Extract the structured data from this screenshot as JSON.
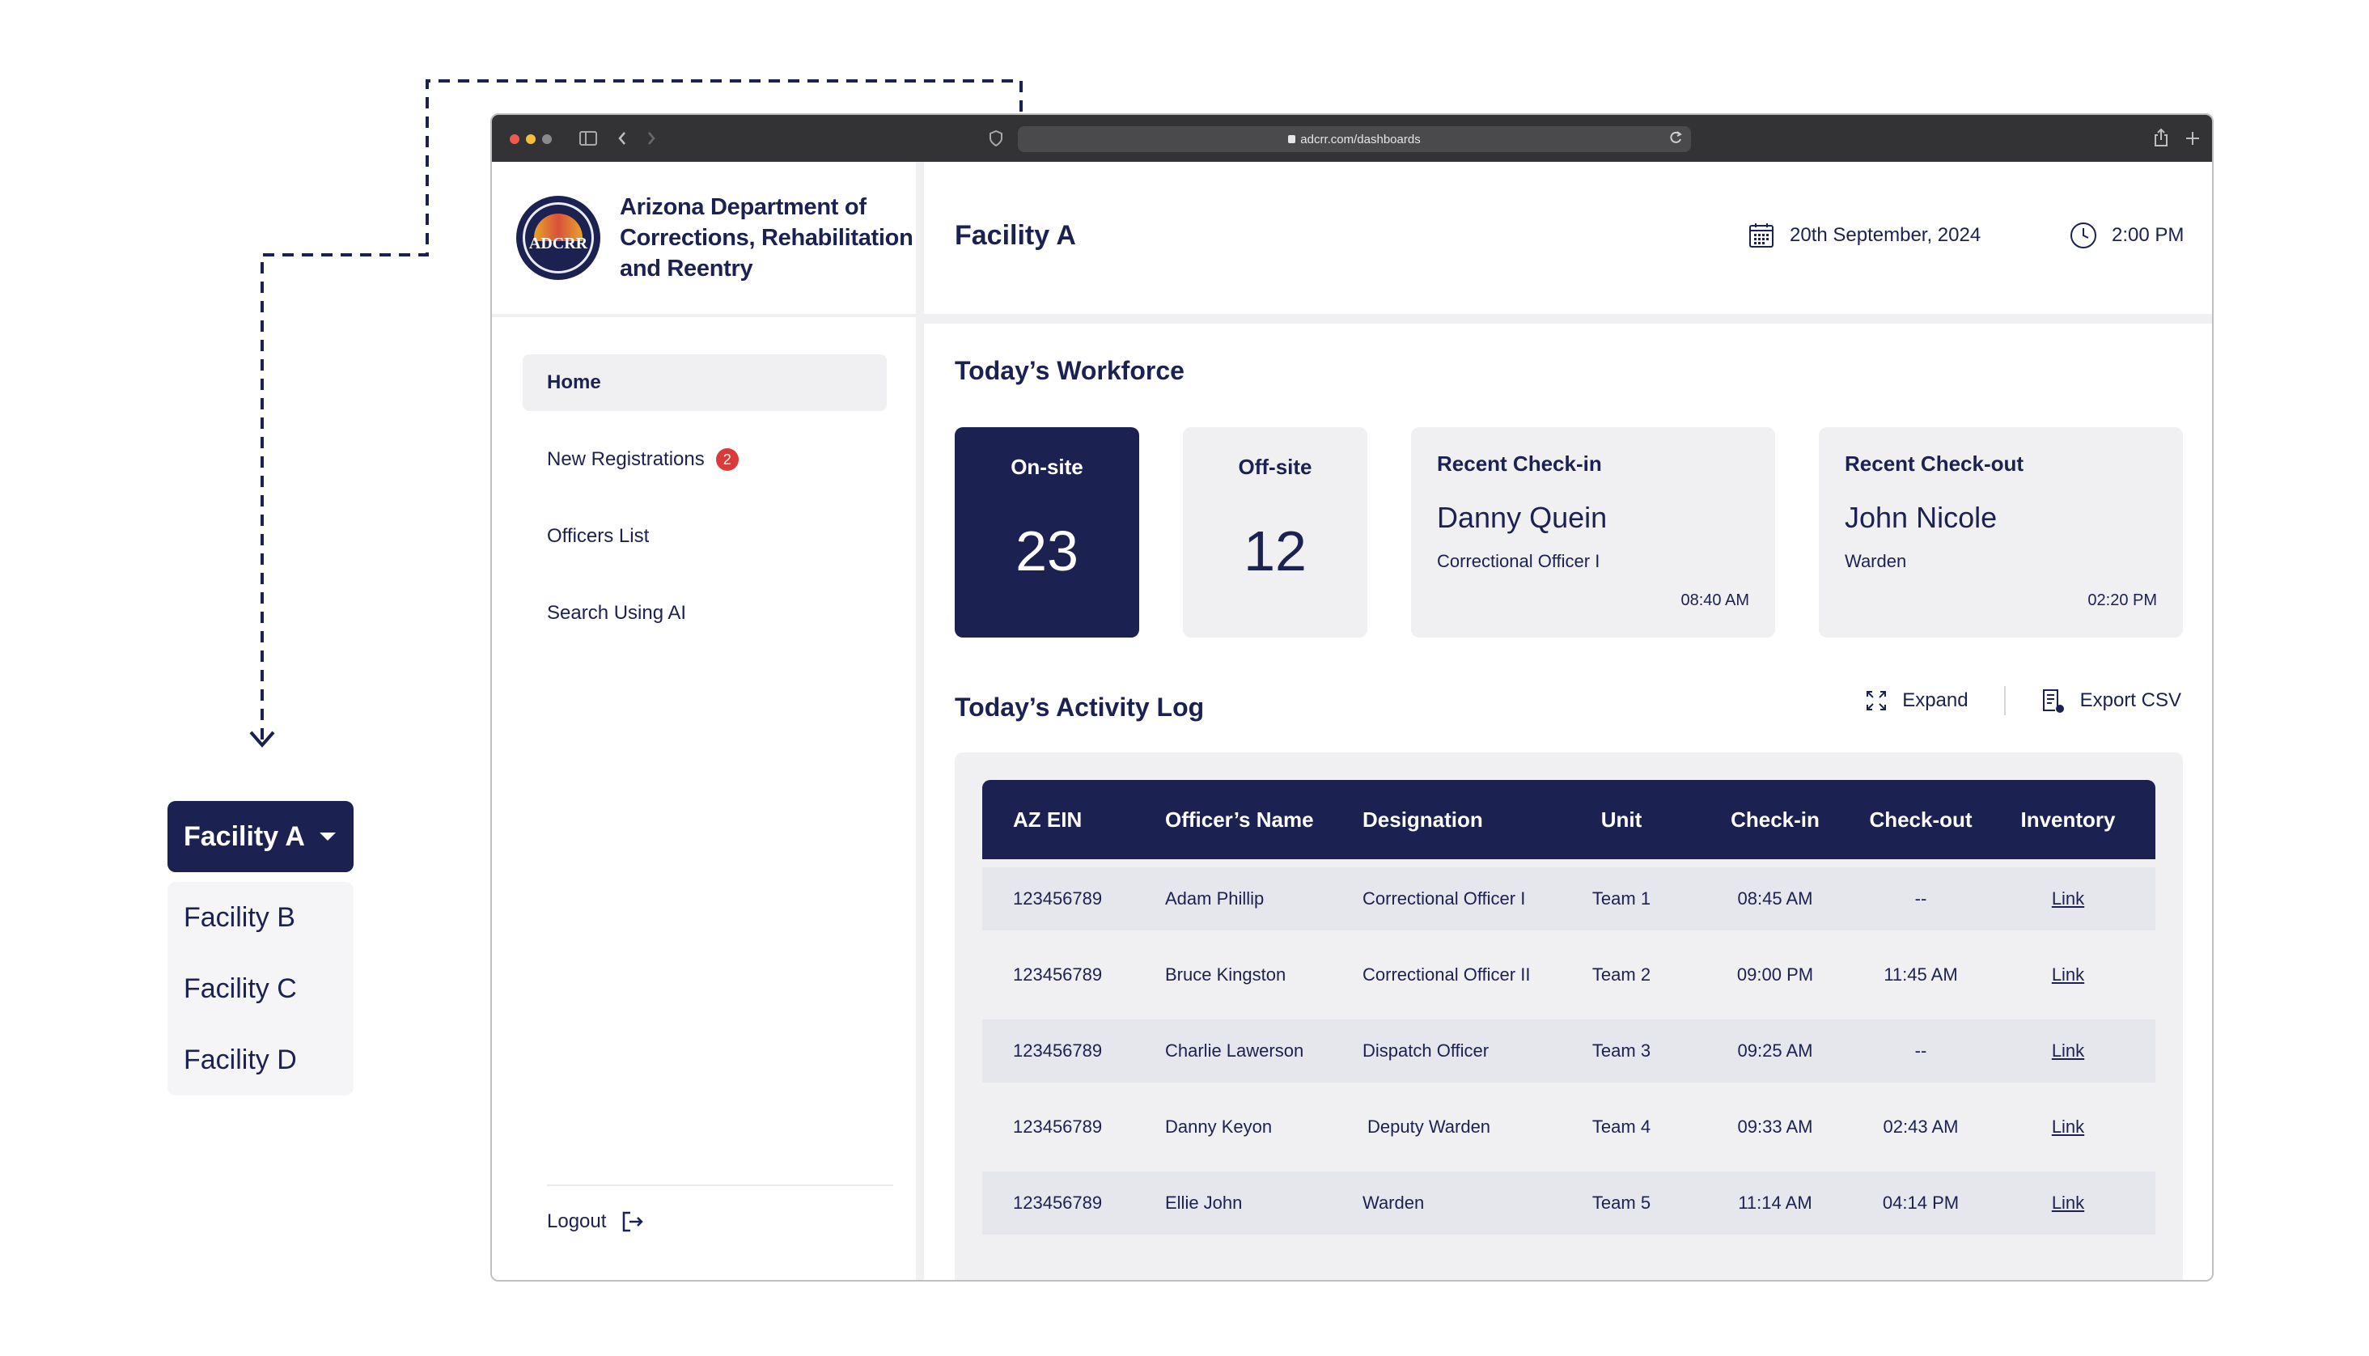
{
  "dropdown": {
    "selected": "Facility A",
    "options": [
      "Facility B",
      "Facility C",
      "Facility D"
    ]
  },
  "browser": {
    "url": "adcrr.com/dashboards"
  },
  "brand": {
    "seal_text": "ADCRR",
    "title_line1": "Arizona Department of",
    "title_line2": "Corrections, Rehabilitation",
    "title_line3": "and Reentry"
  },
  "nav": {
    "items": [
      {
        "label": "Home"
      },
      {
        "label": "New Registrations",
        "badge": "2"
      },
      {
        "label": "Officers List"
      },
      {
        "label": "Search Using AI"
      }
    ],
    "logout": "Logout"
  },
  "header": {
    "facility": "Facility A",
    "date": "20th September, 2024",
    "time": "2:00 PM"
  },
  "workforce": {
    "title": "Today’s Workforce",
    "onsite": {
      "label": "On-site",
      "value": "23"
    },
    "offsite": {
      "label": "Off-site",
      "value": "12"
    },
    "checkin": {
      "label": "Recent Check-in",
      "name": "Danny Quein",
      "role": "Correctional Officer I",
      "time": "08:40 AM"
    },
    "checkout": {
      "label": "Recent Check-out",
      "name": "John Nicole",
      "role": "Warden",
      "time": "02:20 PM"
    }
  },
  "activity": {
    "title": "Today’s Activity Log",
    "expand": "Expand",
    "export": "Export CSV",
    "columns": [
      "AZ EIN",
      "Officer’s Name",
      "Designation",
      "Unit",
      "Check-in",
      "Check-out",
      "Inventory"
    ],
    "rows": [
      [
        "123456789",
        "Adam Phillip",
        "Correctional Officer I",
        "Team 1",
        "08:45 AM",
        "--",
        "Link"
      ],
      [
        "123456789",
        "Bruce Kingston",
        "Correctional Officer II",
        "Team 2",
        "09:00 PM",
        "11:45 AM",
        "Link"
      ],
      [
        "123456789",
        "Charlie Lawerson",
        "Dispatch Officer",
        "Team 3",
        "09:25 AM",
        "--",
        "Link"
      ],
      [
        "123456789",
        "Danny Keyon",
        "Deputy Warden",
        "Team 4",
        "09:33 AM",
        "02:43 AM",
        "Link"
      ],
      [
        "123456789",
        "Ellie John",
        "Warden",
        "Team 5",
        "11:14 AM",
        "04:14 PM",
        "Link"
      ]
    ]
  }
}
